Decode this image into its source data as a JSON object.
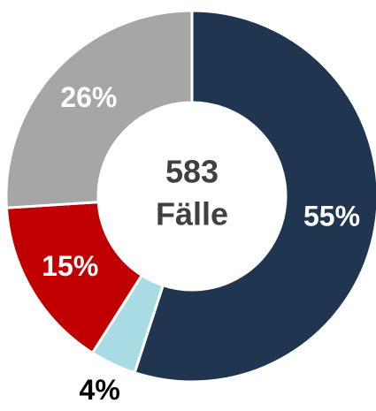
{
  "chart_data": {
    "type": "donut",
    "center_text": [
      "583",
      "Fälle"
    ],
    "categories": [
      null,
      null,
      null,
      null
    ],
    "values": [
      55,
      4,
      15,
      26
    ],
    "value_labels": [
      "55%",
      "4%",
      "15%",
      "26%"
    ],
    "colors": [
      "#203650",
      "#a8dbe3",
      "#c00000",
      "#a6a6a6"
    ]
  }
}
